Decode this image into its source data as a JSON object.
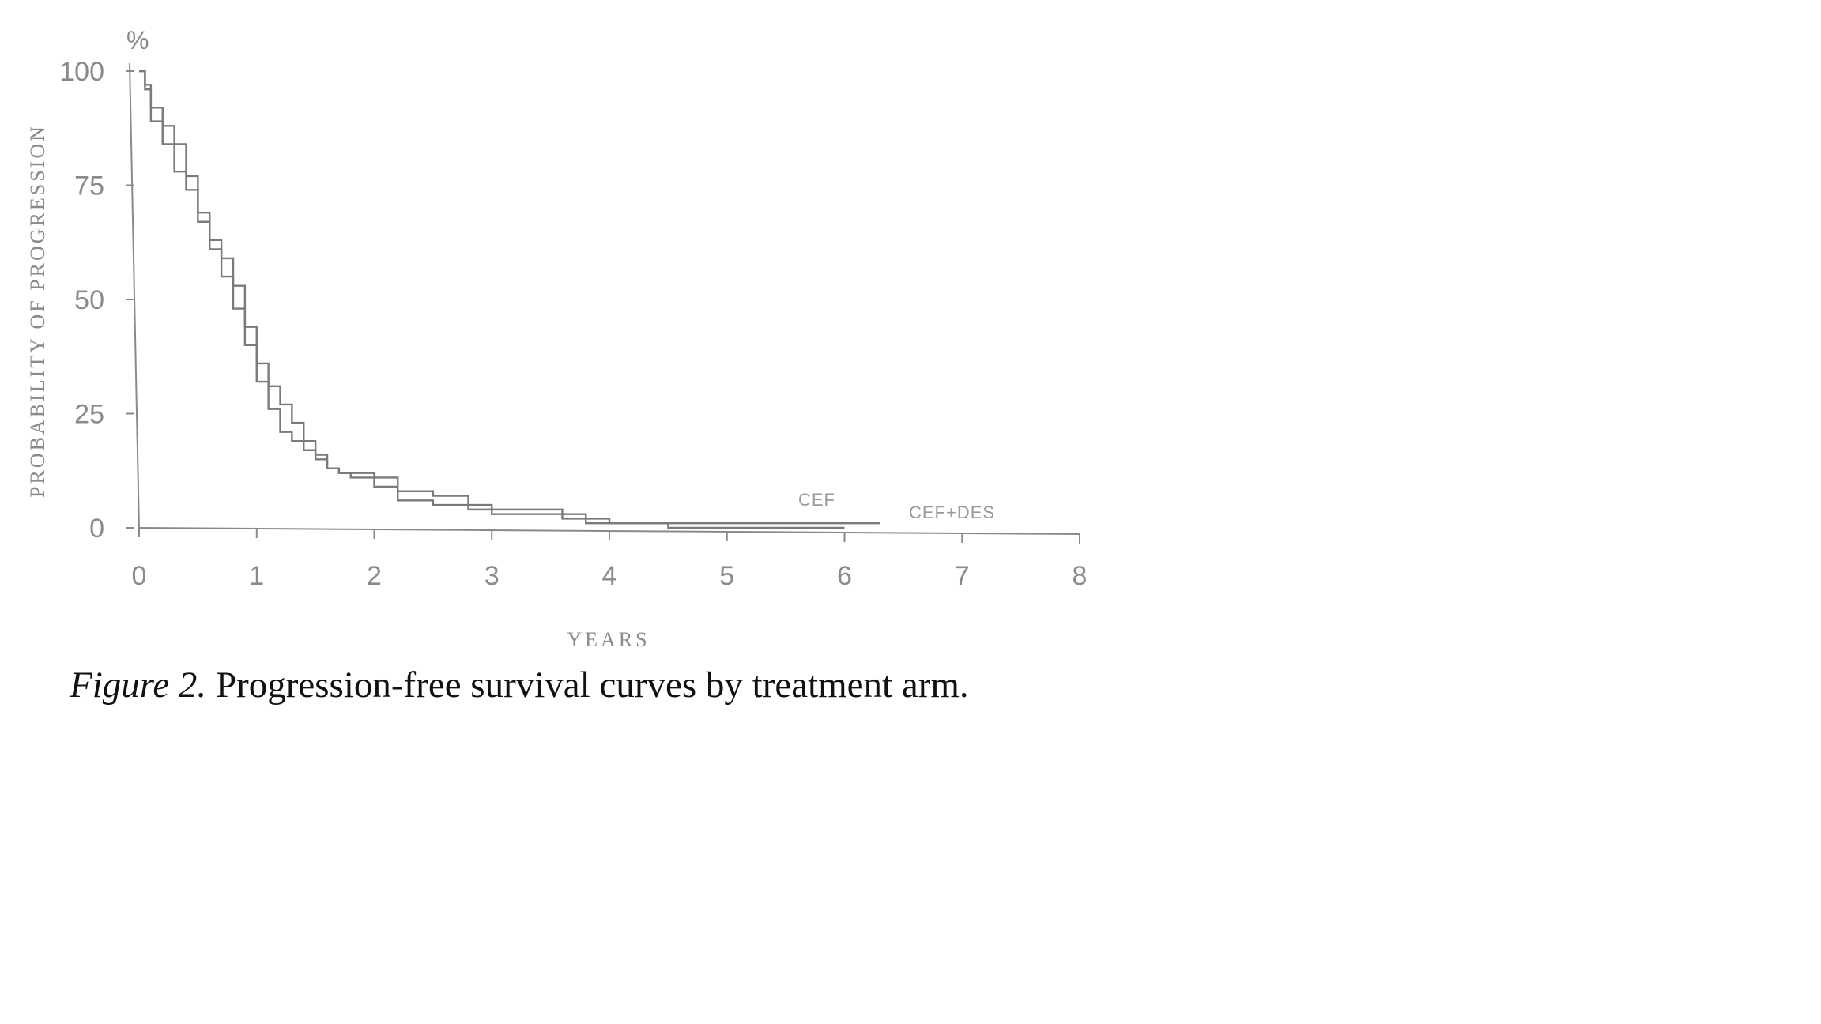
{
  "caption": {
    "lead": "Figure 2.",
    "text": "Progression-free survival curves by treatment arm."
  },
  "chart_data": {
    "type": "line",
    "title": "",
    "xlabel": "YEARS",
    "ylabel": "PROBABILITY OF PROGRESSION",
    "y_unit": "%",
    "xlim": [
      0,
      8
    ],
    "ylim": [
      0,
      100
    ],
    "x_ticks": [
      "0",
      "1",
      "2",
      "3",
      "4",
      "5",
      "6",
      "7",
      "8"
    ],
    "y_ticks": [
      "0",
      "25",
      "50",
      "75",
      "100"
    ],
    "grid": false,
    "legend": "none",
    "colors": {
      "axis": "#8a8a8a",
      "series": "#7a7a7a",
      "text": "#8a8a8a"
    },
    "series": [
      {
        "name": "CEF",
        "x": [
          0,
          0.05,
          0.1,
          0.2,
          0.3,
          0.4,
          0.5,
          0.6,
          0.7,
          0.8,
          0.9,
          1.0,
          1.1,
          1.2,
          1.3,
          1.4,
          1.5,
          1.6,
          1.7,
          1.8,
          2.0,
          2.2,
          2.5,
          2.8,
          3.0,
          3.3,
          3.6,
          3.8,
          4.0,
          4.5,
          5.0,
          5.5,
          6.0,
          6.3
        ],
        "y": [
          100,
          97,
          92,
          88,
          84,
          77,
          69,
          63,
          59,
          53,
          44,
          36,
          31,
          27,
          23,
          19,
          16,
          13,
          12,
          12,
          11,
          8,
          7,
          5,
          4,
          4,
          3,
          2,
          1,
          1,
          1,
          1,
          1,
          1
        ]
      },
      {
        "name": "CEF+DES",
        "x": [
          0,
          0.05,
          0.1,
          0.2,
          0.3,
          0.4,
          0.5,
          0.6,
          0.7,
          0.8,
          0.9,
          1.0,
          1.1,
          1.2,
          1.3,
          1.4,
          1.5,
          1.6,
          1.7,
          1.8,
          2.0,
          2.2,
          2.5,
          2.8,
          3.0,
          3.3,
          3.6,
          3.8,
          4.0,
          4.5,
          5.0,
          5.5,
          6.0
        ],
        "y": [
          100,
          96,
          89,
          84,
          78,
          74,
          67,
          61,
          55,
          48,
          40,
          32,
          26,
          21,
          19,
          17,
          15,
          13,
          12,
          11,
          9,
          6,
          5,
          4,
          3,
          3,
          2,
          1,
          1,
          0,
          0,
          0,
          0
        ]
      }
    ],
    "annotations": [
      "CEF",
      "CEF+DES"
    ]
  }
}
